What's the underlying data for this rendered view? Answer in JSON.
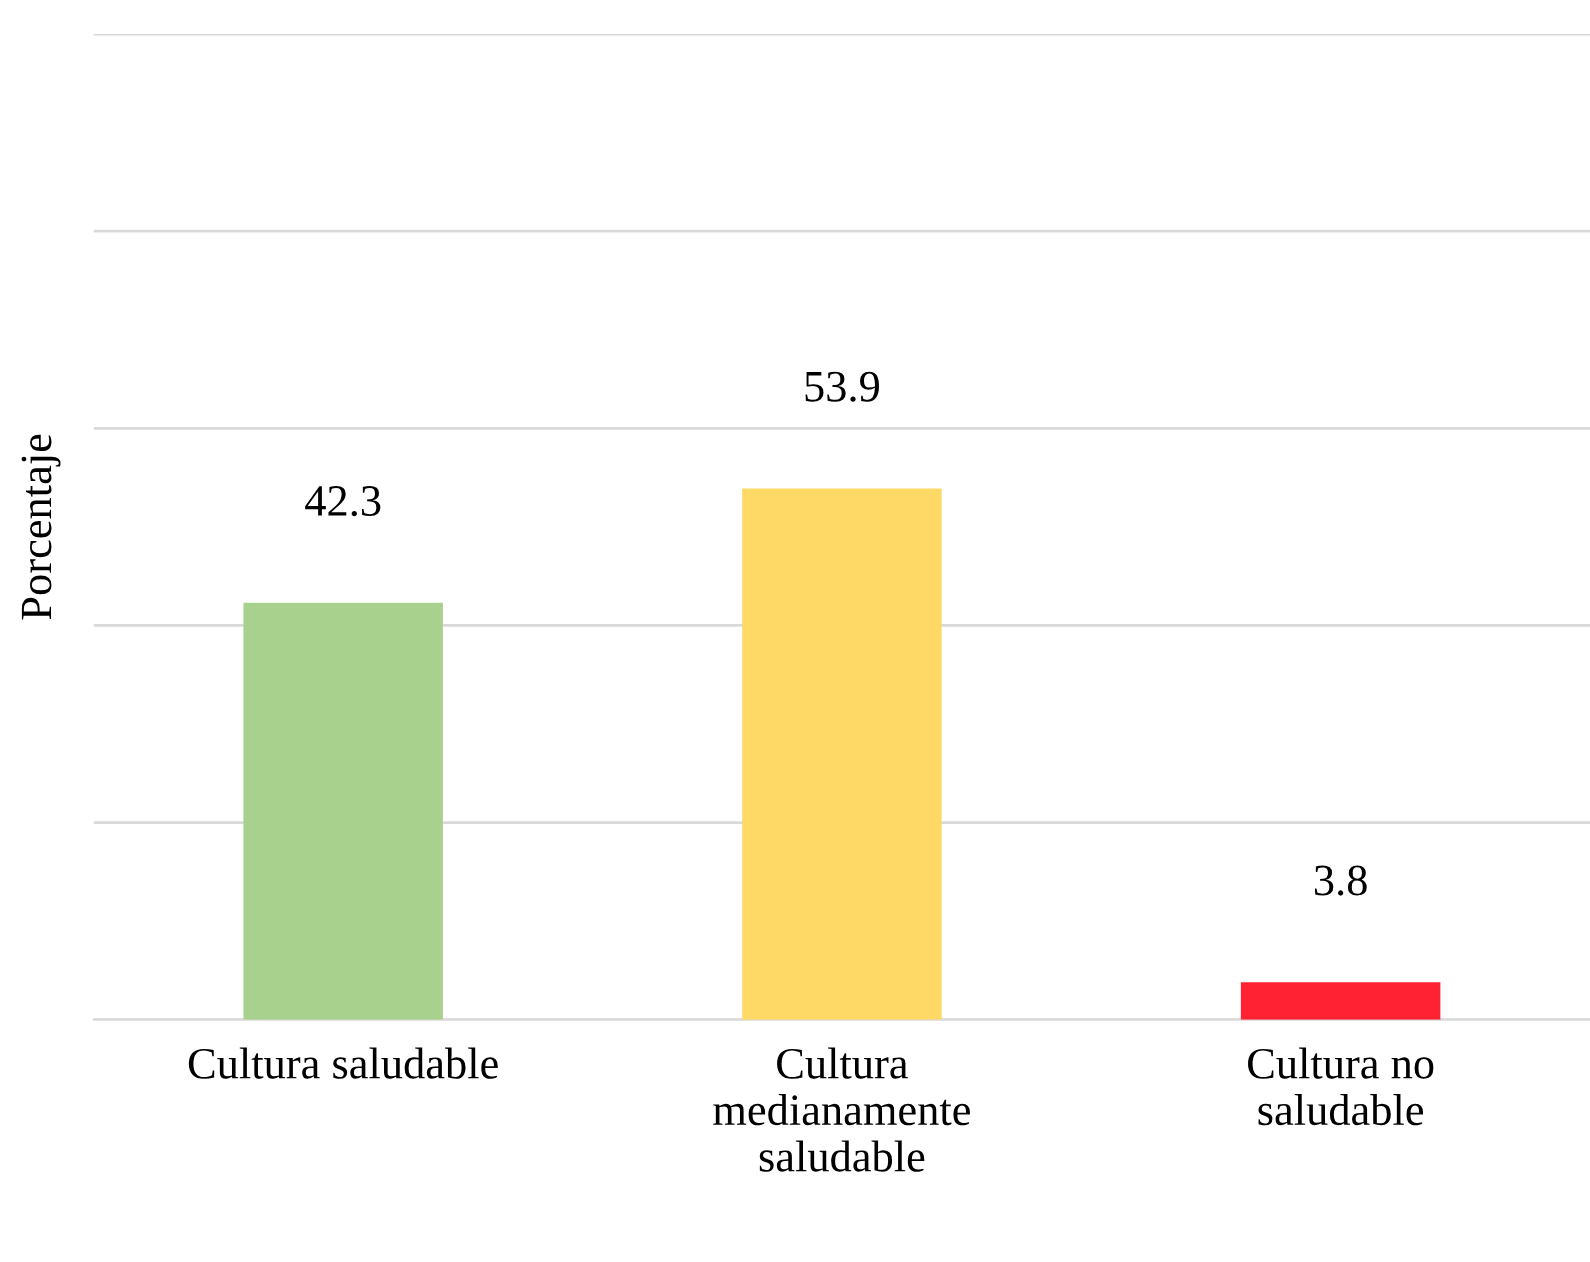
{
  "chart_data": {
    "type": "bar",
    "ylabel": "Porcentaje",
    "categories": [
      "Cultura saludable",
      "Cultura medianamente saludable",
      "Cultura no saludable"
    ],
    "values": [
      42.3,
      53.9,
      3.8
    ],
    "colors": [
      "#a9d18e",
      "#ffd966",
      "#ff2233"
    ],
    "ylim": [
      0,
      100
    ],
    "yticks": [
      {
        "value": 0,
        "label": null
      },
      {
        "value": 20,
        "label": null
      },
      {
        "value": 40,
        "label": null
      },
      {
        "value": 60,
        "label": null
      },
      {
        "value": 80,
        "label": null
      },
      {
        "value": 100,
        "label": null
      }
    ],
    "grid": "y",
    "data_labels": true
  }
}
